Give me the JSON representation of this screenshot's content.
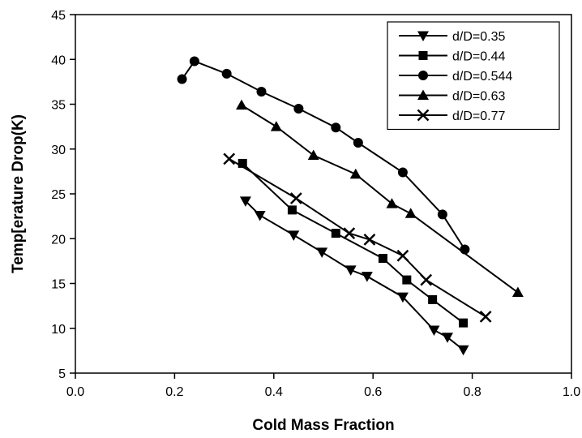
{
  "chart_data": {
    "type": "line",
    "title": "",
    "xlabel": "Cold Mass Fraction",
    "ylabel": "Temp[erature Drop(K)",
    "xlim": [
      0.0,
      1.0
    ],
    "ylim": [
      5,
      45
    ],
    "xticks": [
      0.0,
      0.2,
      0.4,
      0.6,
      0.8,
      1.0
    ],
    "xtick_labels": [
      "0.0",
      "0.2",
      "0.4",
      "0.6",
      "0.8",
      "1.0"
    ],
    "yticks": [
      5,
      10,
      15,
      20,
      25,
      30,
      35,
      40,
      45
    ],
    "ytick_labels": [
      "5",
      "10",
      "15",
      "20",
      "25",
      "30",
      "35",
      "40",
      "45"
    ],
    "grid": false,
    "legend_position": "top-right",
    "line_color": "#000000",
    "series": [
      {
        "name": "d/D=0.35",
        "marker": "triangle-down",
        "x": [
          0.343,
          0.372,
          0.44,
          0.497,
          0.555,
          0.588,
          0.66,
          0.723,
          0.75,
          0.782
        ],
        "y": [
          24.2,
          22.6,
          20.4,
          18.5,
          16.5,
          15.8,
          13.5,
          9.8,
          9.0,
          7.6
        ]
      },
      {
        "name": "d/D=0.44",
        "marker": "square",
        "x": [
          0.337,
          0.437,
          0.525,
          0.62,
          0.668,
          0.72,
          0.782
        ],
        "y": [
          28.4,
          23.2,
          20.6,
          17.8,
          15.4,
          13.2,
          10.6
        ]
      },
      {
        "name": "d/D=0.544",
        "marker": "circle",
        "x": [
          0.215,
          0.24,
          0.305,
          0.375,
          0.45,
          0.525,
          0.57,
          0.66,
          0.74,
          0.785
        ],
        "y": [
          37.8,
          39.8,
          38.4,
          36.4,
          34.5,
          32.4,
          30.7,
          27.4,
          22.7,
          18.8
        ]
      },
      {
        "name": "d/D=0.63",
        "marker": "triangle-up",
        "x": [
          0.335,
          0.405,
          0.48,
          0.565,
          0.638,
          0.676,
          0.892
        ],
        "y": [
          34.9,
          32.5,
          29.3,
          27.2,
          23.9,
          22.8,
          14.0
        ]
      },
      {
        "name": "d/D=0.77",
        "marker": "x",
        "x": [
          0.31,
          0.445,
          0.552,
          0.593,
          0.66,
          0.707,
          0.827
        ],
        "y": [
          28.9,
          24.5,
          20.6,
          19.9,
          18.1,
          15.4,
          11.3
        ]
      }
    ]
  }
}
